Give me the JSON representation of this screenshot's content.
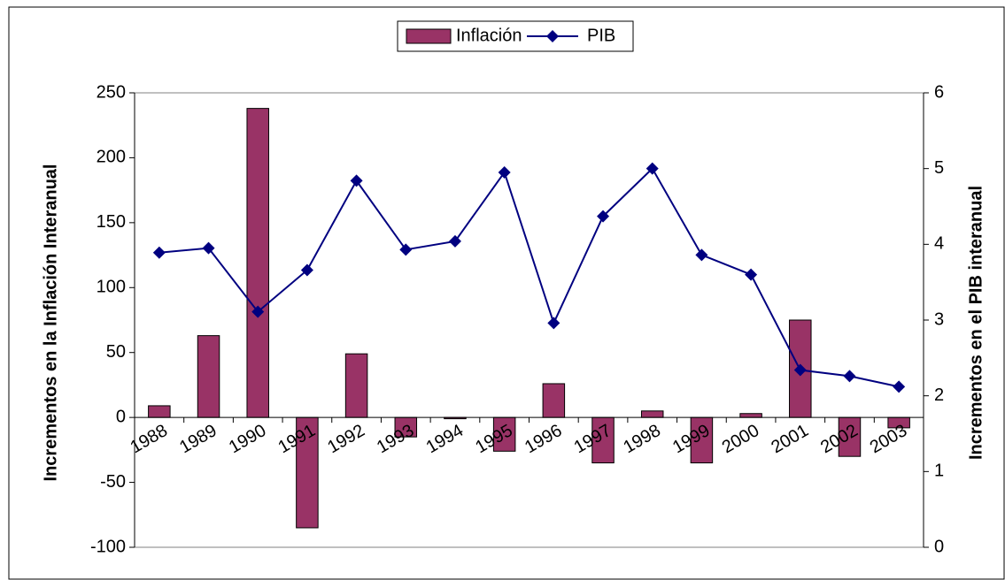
{
  "chart_data": {
    "type": "bar_line",
    "categories": [
      "1988",
      "1989",
      "1990",
      "1991",
      "1992",
      "1993",
      "1994",
      "1995",
      "1996",
      "1997",
      "1998",
      "1999",
      "2000",
      "2001",
      "2002",
      "2003"
    ],
    "series": [
      {
        "name": "Inflación",
        "type": "bar",
        "color": "#993366",
        "values": [
          9,
          63,
          238,
          -85,
          49,
          -15,
          -1,
          -26,
          26,
          -35,
          5,
          -35,
          3,
          75,
          -30,
          -8
        ]
      },
      {
        "name": "PIB",
        "type": "line",
        "axis": "y2",
        "color": "#000080",
        "values": [
          3.89,
          3.95,
          3.11,
          3.66,
          4.84,
          3.93,
          4.04,
          4.95,
          2.96,
          4.37,
          5.0,
          3.86,
          3.6,
          2.34,
          2.26,
          2.12
        ]
      }
    ],
    "ylabel": "Incrementos en la Inflación Interanual",
    "y2label": "Incrementos en el PIB interanual",
    "ylim": [
      -100,
      250
    ],
    "yticks": [
      -100,
      -50,
      0,
      50,
      100,
      150,
      200,
      250
    ],
    "y2lim": [
      0,
      6
    ],
    "y2ticks": [
      0,
      1,
      2,
      3,
      4,
      5,
      6
    ],
    "legend": "top"
  }
}
